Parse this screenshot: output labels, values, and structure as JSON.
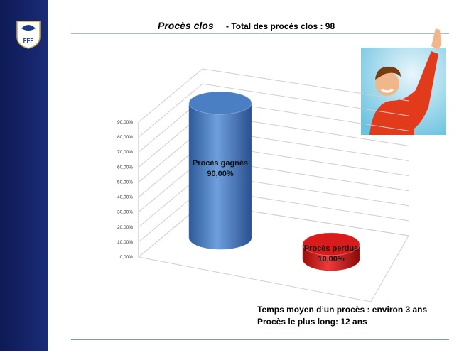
{
  "chart_data": {
    "type": "bar3d",
    "title": "Procès clos",
    "subtitle": "- Total des procès clos : 98",
    "categories": [
      "Procès gagnés",
      "Procès perdus"
    ],
    "values": [
      90,
      10
    ],
    "value_labels": [
      "90,00%",
      "10,00%"
    ],
    "colors": [
      "#4a7fc4",
      "#d81c1c"
    ],
    "ylim": [
      0,
      90
    ],
    "yticks": [
      {
        "value": 0,
        "label": "0,00%"
      },
      {
        "value": 10,
        "label": "10,00%"
      },
      {
        "value": 20,
        "label": "20,00%"
      },
      {
        "value": 30,
        "label": "30,00%"
      },
      {
        "value": 40,
        "label": "40,00%"
      },
      {
        "value": 50,
        "label": "50,00%"
      },
      {
        "value": 60,
        "label": "60,00%"
      },
      {
        "value": 70,
        "label": "70,00%"
      },
      {
        "value": 80,
        "label": "80,00%"
      },
      {
        "value": 90,
        "label": "90,00%"
      }
    ],
    "grid": true,
    "notes": [
      "Temps moyen d’un procès : environ 3 ans",
      "Procès le plus long: 12 ans"
    ]
  }
}
